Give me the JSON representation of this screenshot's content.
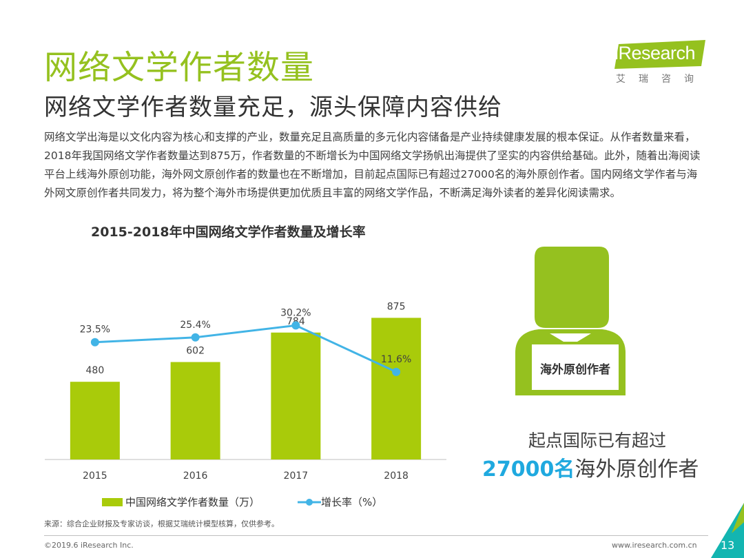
{
  "header": {
    "title": "网络文学作者数量",
    "subtitle": "网络文学作者数量充足，源头保障内容供给"
  },
  "logo": {
    "name": "iResearch",
    "cn": "艾瑞咨询"
  },
  "body_text": "网络文学出海是以文化内容为核心和支撑的产业，数量充足且高质量的多元化内容储备是产业持续健康发展的根本保证。从作者数量来看，2018年我国网络文学作者数量达到875万，作者数量的不断增长为中国网络文学扬帆出海提供了坚实的内容供给基础。此外，随着出海阅读平台上线海外原创功能，海外网文原创作者的数量也在不断增加，目前起点国际已有超过27000名的海外原创作者。国内网络文学作者与海外网文原创作者共同发力，将为整个海外市场提供更加优质且丰富的网络文学作品，不断满足海外读者的差异化阅读需求。",
  "chart_data": {
    "type": "bar+line",
    "title": "2015-2018年中国网络文学作者数量及增长率",
    "categories": [
      "2015",
      "2016",
      "2017",
      "2018"
    ],
    "series": [
      {
        "name": "中国网络文学作者数量（万）",
        "type": "bar",
        "values": [
          480,
          602,
          784,
          875
        ],
        "color": "#a9cb0a"
      },
      {
        "name": "增长率（%）",
        "type": "line",
        "values": [
          23.5,
          25.4,
          30.2,
          11.6
        ],
        "labels": [
          "23.5%",
          "25.4%",
          "30.2%",
          "11.6%"
        ],
        "color": "#42b4e6"
      }
    ],
    "grid": false,
    "legend": "bottom"
  },
  "callout": {
    "card_label": "海外原创作者",
    "line1": "起点国际已有超过",
    "highlight": "27000名",
    "rest": "海外原创作者",
    "accent": "#1fa9df"
  },
  "footer": {
    "source": "来源：综合企业财报及专家访谈，根据艾瑞统计模型核算，仅供参考。",
    "copyright": "©2019.6 iResearch Inc.",
    "website": "www.iresearch.com.cn",
    "page": "13"
  },
  "colors": {
    "brand_green": "#95c11f",
    "bar_green": "#a9cb0a",
    "line_blue": "#42b4e6",
    "corner_teal": "#13b5b1"
  }
}
